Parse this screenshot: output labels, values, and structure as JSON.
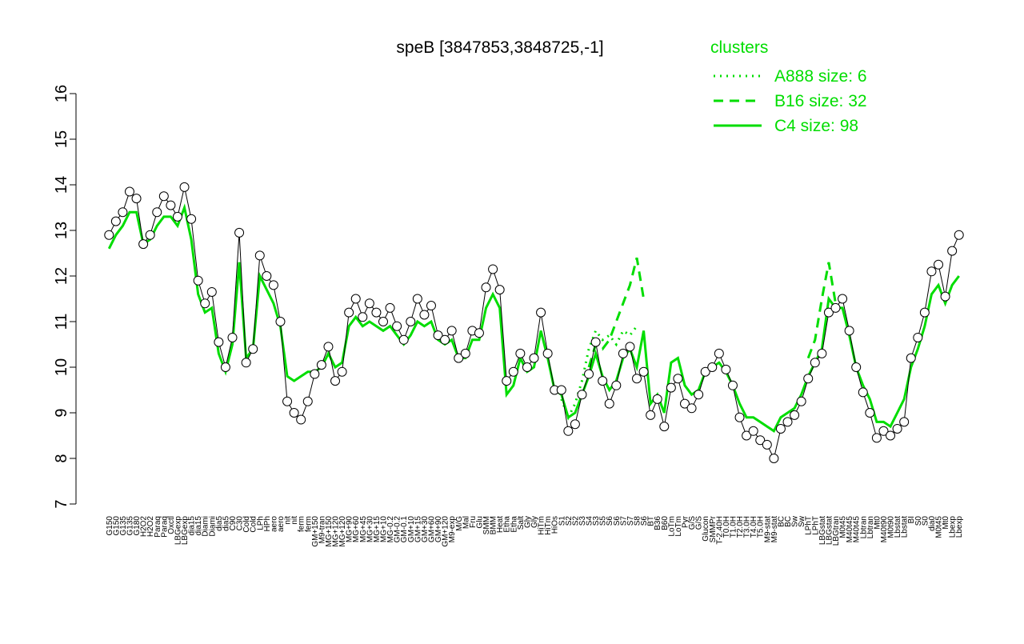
{
  "chart_data": {
    "type": "line",
    "title": "speB [3847853,3848725,-1]",
    "categories": [
      "G150",
      "G150",
      "G135",
      "G135",
      "G180",
      "H2O2",
      "H2O2",
      "Paraq",
      "Paraq",
      "Oxctl",
      "LBGexp",
      "LBGexp",
      "dia15",
      "dia15",
      "Diami",
      "Diami",
      "dia5",
      "dia5",
      "C90",
      "C30",
      "Cold",
      "Cold",
      "LPh",
      "HPh",
      "aero",
      "aero",
      "nit",
      "nit",
      "ferm",
      "ferm",
      "GM+150",
      "M9-tran",
      "MG+150",
      "MG+120",
      "MG+120",
      "MG+90",
      "MG+60",
      "MG+45",
      "MG+30",
      "MG+15",
      "MG+10",
      "MG-0.2",
      "GM-0.2",
      "GM-0.1",
      "GM+10",
      "GM+15",
      "GM+30",
      "GM+60",
      "GM+90",
      "GM+120",
      "M9-exp",
      "M/G",
      "Mal",
      "Fru",
      "Glu",
      "SMM",
      "BMM",
      "Heat",
      "Etha",
      "Etha",
      "Salt",
      "Gly",
      "Gly",
      "HiTm",
      "HiTm",
      "HiOs",
      "S1",
      "S2",
      "S2",
      "S3",
      "S4",
      "S3",
      "S5",
      "S6",
      "S6",
      "S7",
      "S7",
      "S8",
      "S6",
      "BT",
      "B36",
      "B60",
      "LoTm",
      "LoTm",
      "Pyr",
      "G/S",
      "G/S",
      "Glucon",
      "SMMPr",
      "T-2.40H",
      "T0.0H",
      "T1.0H",
      "T2.0H",
      "T3.0H",
      "T4.0H",
      "T5.0H",
      "M9-stat",
      "M9-stat",
      "BC",
      "BC",
      "Sw",
      "Sw",
      "LPhT",
      "LPhT",
      "LBGstat",
      "LBGstat",
      "LBGtran",
      "M0t45",
      "M40t45",
      "M40t45",
      "Lbtran",
      "Lbtran",
      "Mt0",
      "M40t90",
      "M0t90",
      "Lbstat",
      "Lbstat",
      "BI",
      "S0",
      "S0",
      "dia0",
      "M0t45",
      "Mt0",
      "Lbexp",
      "Lbexp"
    ],
    "values": [
      12.9,
      13.2,
      13.4,
      13.85,
      13.7,
      12.7,
      12.9,
      13.4,
      13.75,
      13.55,
      13.3,
      13.95,
      13.25,
      11.9,
      11.4,
      11.65,
      10.55,
      10.0,
      10.65,
      12.95,
      10.1,
      10.4,
      12.45,
      12.0,
      11.8,
      11.0,
      9.25,
      9.0,
      8.85,
      9.25,
      9.85,
      10.05,
      10.45,
      9.7,
      9.9,
      11.2,
      11.5,
      11.1,
      11.4,
      11.2,
      11.0,
      11.3,
      10.9,
      10.6,
      11.0,
      11.5,
      11.15,
      11.35,
      10.7,
      10.6,
      10.8,
      10.2,
      10.3,
      10.8,
      10.75,
      11.75,
      12.15,
      11.7,
      9.7,
      9.9,
      10.3,
      10.0,
      10.2,
      11.2,
      10.3,
      9.5,
      9.5,
      8.6,
      8.75,
      9.4,
      9.85,
      10.55,
      9.7,
      9.2,
      9.6,
      10.3,
      10.45,
      9.75,
      9.9,
      8.95,
      9.3,
      8.7,
      9.55,
      9.75,
      9.2,
      9.1,
      9.4,
      9.9,
      10.0,
      10.3,
      9.95,
      9.6,
      8.9,
      8.5,
      8.6,
      8.4,
      8.3,
      8.0,
      8.65,
      8.8,
      8.95,
      9.25,
      9.75,
      10.1,
      10.3,
      11.2,
      11.3,
      11.5,
      10.8,
      10.0,
      9.45,
      9.0,
      8.45,
      8.6,
      8.5,
      8.65,
      8.8,
      10.2,
      10.65,
      11.2,
      12.1,
      12.25,
      11.55,
      12.55,
      12.9
    ],
    "color": "#000000",
    "legend_title": "clusters",
    "series": [
      {
        "name": "A888 size: 6",
        "color": "#00dd00",
        "dash": "dotted",
        "values": [
          null,
          null,
          null,
          null,
          null,
          null,
          null,
          null,
          null,
          null,
          null,
          null,
          null,
          null,
          null,
          null,
          null,
          null,
          null,
          null,
          null,
          null,
          null,
          null,
          null,
          null,
          null,
          null,
          null,
          null,
          null,
          null,
          null,
          null,
          null,
          null,
          null,
          null,
          null,
          null,
          null,
          null,
          null,
          null,
          null,
          null,
          null,
          null,
          null,
          null,
          null,
          null,
          null,
          null,
          null,
          null,
          null,
          null,
          null,
          null,
          null,
          null,
          null,
          null,
          null,
          null,
          9.3,
          8.9,
          9.2,
          9.7,
          10.4,
          10.8,
          10.6,
          10.7,
          10.5,
          10.8,
          10.7,
          10.9,
          null,
          null,
          null,
          null,
          null,
          null,
          null,
          null,
          null,
          null,
          null,
          null,
          null,
          null,
          null,
          null,
          null,
          null,
          null,
          null,
          null,
          null,
          null,
          null,
          null,
          null,
          null,
          null,
          null,
          null,
          null,
          null,
          null,
          null,
          null,
          null,
          null,
          null,
          null,
          null,
          null,
          null,
          null,
          null,
          null,
          null,
          null
        ]
      },
      {
        "name": "B16 size: 32",
        "color": "#00dd00",
        "dash": "dashed",
        "values": [
          null,
          null,
          null,
          null,
          null,
          null,
          null,
          null,
          null,
          null,
          null,
          null,
          null,
          null,
          null,
          null,
          null,
          null,
          null,
          null,
          null,
          null,
          null,
          null,
          null,
          null,
          null,
          null,
          null,
          null,
          null,
          null,
          null,
          null,
          null,
          null,
          null,
          null,
          null,
          null,
          null,
          null,
          null,
          null,
          null,
          null,
          null,
          null,
          null,
          null,
          null,
          null,
          null,
          null,
          null,
          null,
          null,
          null,
          null,
          null,
          null,
          null,
          null,
          null,
          null,
          null,
          null,
          null,
          null,
          null,
          10.0,
          10.5,
          10.4,
          10.6,
          11.0,
          11.4,
          11.8,
          12.4,
          11.5,
          null,
          null,
          null,
          null,
          null,
          null,
          null,
          null,
          null,
          null,
          null,
          null,
          null,
          null,
          null,
          null,
          null,
          null,
          null,
          null,
          null,
          null,
          null,
          10.2,
          10.6,
          11.5,
          12.3,
          11.4,
          null,
          null,
          null,
          null,
          null,
          null,
          null,
          null,
          null,
          null,
          null,
          null,
          null,
          null,
          null,
          null,
          null,
          null
        ]
      },
      {
        "name": "C4 size: 98",
        "color": "#00dd00",
        "dash": "solid",
        "values": [
          12.6,
          12.9,
          13.1,
          13.4,
          13.4,
          12.7,
          12.8,
          13.1,
          13.3,
          13.3,
          13.1,
          13.5,
          12.8,
          11.6,
          11.2,
          11.3,
          10.3,
          9.9,
          10.5,
          12.3,
          10.2,
          10.4,
          12.0,
          11.7,
          11.4,
          10.9,
          9.8,
          9.7,
          9.8,
          9.9,
          9.9,
          10.0,
          10.3,
          10.0,
          10.1,
          10.9,
          11.1,
          10.9,
          11.0,
          10.9,
          10.8,
          10.9,
          10.7,
          10.5,
          10.7,
          11.0,
          10.9,
          11.0,
          10.6,
          10.5,
          10.6,
          10.2,
          10.2,
          10.6,
          10.6,
          11.3,
          11.6,
          11.3,
          9.4,
          9.6,
          10.2,
          9.9,
          10.0,
          10.8,
          10.2,
          9.5,
          9.4,
          8.9,
          9.0,
          9.4,
          9.8,
          10.3,
          9.8,
          9.5,
          9.7,
          10.2,
          10.4,
          10.0,
          10.8,
          9.2,
          9.4,
          9.0,
          10.1,
          10.2,
          9.6,
          9.4,
          9.5,
          9.9,
          10.0,
          10.1,
          9.9,
          9.6,
          9.2,
          8.9,
          8.9,
          8.8,
          8.7,
          8.6,
          8.9,
          9.0,
          9.1,
          9.4,
          9.8,
          10.1,
          10.4,
          11.5,
          11.3,
          11.3,
          10.7,
          10.0,
          9.6,
          9.3,
          8.8,
          8.8,
          8.7,
          9.0,
          9.3,
          10.0,
          10.4,
          10.9,
          11.6,
          11.8,
          11.4,
          11.8,
          12.0
        ]
      }
    ],
    "ylim": [
      7,
      16
    ],
    "yticks": [
      7,
      8,
      9,
      10,
      11,
      12,
      13,
      14,
      15,
      16
    ]
  }
}
